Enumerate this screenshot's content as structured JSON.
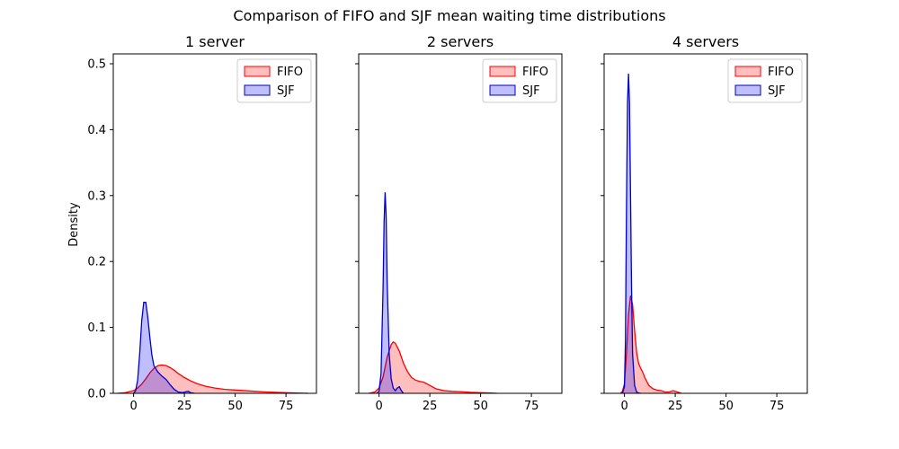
{
  "chart_data": {
    "type": "area",
    "title": "Comparison of FIFO and SJF mean waiting time distributions",
    "ylabel": "Density",
    "xlim": [
      -10,
      90
    ],
    "ylim": [
      0,
      0.515
    ],
    "xticks": [
      0,
      25,
      50,
      75
    ],
    "yticks": [
      0.0,
      0.1,
      0.2,
      0.3,
      0.4,
      0.5
    ],
    "legend_position": "upper right",
    "colors": {
      "FIFO": {
        "line": "#ff0000",
        "fill": "#ff0000"
      },
      "SJF": {
        "line": "#0000cc",
        "fill": "#0000ff"
      }
    },
    "panels": [
      {
        "title": "1 server",
        "series": [
          {
            "name": "FIFO",
            "x": [
              -8,
              -4,
              0,
              2,
              4,
              6,
              8,
              10,
              12,
              14,
              16,
              18,
              20,
              22,
              25,
              28,
              31,
              35,
              40,
              45,
              50,
              55,
              60,
              65,
              70,
              75,
              80,
              86
            ],
            "y": [
              0.0,
              0.001,
              0.004,
              0.008,
              0.014,
              0.022,
              0.031,
              0.038,
              0.042,
              0.043,
              0.042,
              0.039,
              0.035,
              0.03,
              0.024,
              0.019,
              0.015,
              0.011,
              0.008,
              0.006,
              0.005,
              0.004,
              0.003,
              0.002,
              0.0015,
              0.001,
              0.0005,
              0.0
            ]
          },
          {
            "name": "SJF",
            "x": [
              0,
              1,
              2,
              3,
              4,
              5,
              6,
              7,
              8,
              9,
              10,
              12,
              14,
              16,
              18,
              20,
              22,
              24,
              26,
              27,
              28,
              30
            ],
            "y": [
              0.0,
              0.004,
              0.02,
              0.06,
              0.11,
              0.138,
              0.138,
              0.115,
              0.085,
              0.058,
              0.042,
              0.032,
              0.026,
              0.021,
              0.013,
              0.006,
              0.002,
              0.001,
              0.0025,
              0.003,
              0.001,
              0.0
            ]
          }
        ]
      },
      {
        "title": "2 servers",
        "series": [
          {
            "name": "FIFO",
            "x": [
              -5,
              -2,
              0,
              2,
              4,
              6,
              7,
              8,
              10,
              12,
              14,
              16,
              18,
              20,
              22,
              25,
              28,
              32,
              36,
              40,
              45,
              50,
              55,
              58
            ],
            "y": [
              0.0,
              0.002,
              0.008,
              0.025,
              0.055,
              0.074,
              0.078,
              0.076,
              0.064,
              0.046,
              0.033,
              0.024,
              0.02,
              0.018,
              0.017,
              0.012,
              0.007,
              0.004,
              0.003,
              0.0025,
              0.0015,
              0.001,
              0.0005,
              0.0
            ]
          },
          {
            "name": "SJF",
            "x": [
              -1,
              0,
              1,
              2,
              2.5,
              3,
              3.5,
              4,
              5,
              6,
              7,
              8,
              9,
              10,
              11,
              12
            ],
            "y": [
              0.0,
              0.003,
              0.03,
              0.16,
              0.26,
              0.305,
              0.27,
              0.17,
              0.06,
              0.022,
              0.008,
              0.004,
              0.008,
              0.01,
              0.004,
              0.0
            ]
          }
        ]
      },
      {
        "title": "4 servers",
        "series": [
          {
            "name": "FIFO",
            "x": [
              -2,
              -1,
              0,
              1,
              2,
              3,
              4,
              5,
              6,
              7,
              8,
              9,
              10,
              12,
              14,
              16,
              18,
              20,
              22,
              24,
              26,
              28
            ],
            "y": [
              0.0,
              0.003,
              0.015,
              0.06,
              0.12,
              0.148,
              0.135,
              0.095,
              0.062,
              0.045,
              0.038,
              0.032,
              0.024,
              0.012,
              0.007,
              0.005,
              0.004,
              0.002,
              0.002,
              0.004,
              0.002,
              0.0
            ]
          },
          {
            "name": "SJF",
            "x": [
              -1,
              0,
              0.5,
              1,
              1.5,
              2,
              2.5,
              3,
              3.5,
              4,
              5,
              6,
              7,
              8
            ],
            "y": [
              0.0,
              0.01,
              0.08,
              0.28,
              0.44,
              0.485,
              0.44,
              0.3,
              0.16,
              0.06,
              0.012,
              0.002,
              0.0005,
              0.0
            ]
          }
        ]
      }
    ]
  }
}
